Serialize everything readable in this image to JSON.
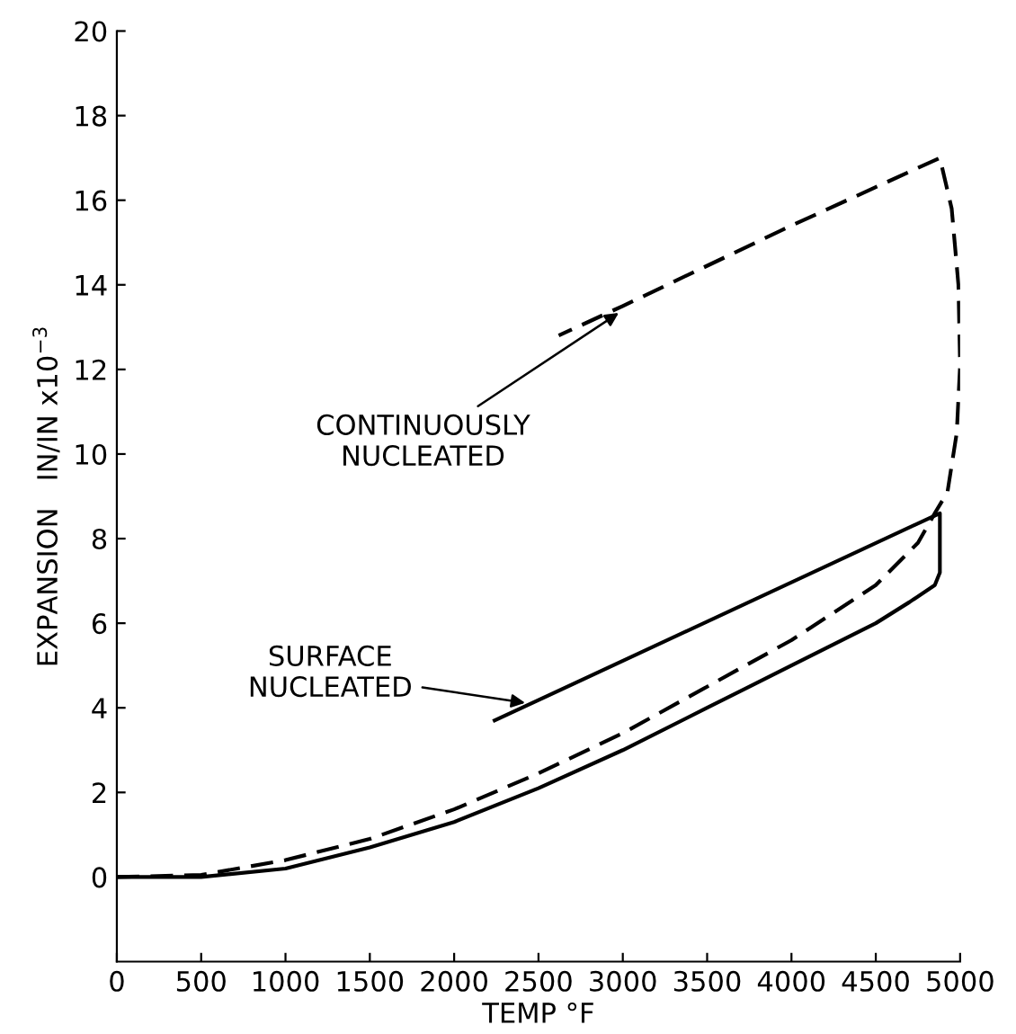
{
  "chart_data": {
    "type": "line",
    "xlabel": "TEMP °F",
    "ylabel": "EXPANSION   IN/IN x10$^{−3}$",
    "xlim": [
      0,
      5000
    ],
    "xticks": [
      0,
      500,
      1000,
      1500,
      2000,
      2500,
      3000,
      3500,
      4000,
      4500,
      5000
    ],
    "ylim": [
      -2,
      20
    ],
    "yticks": [
      0,
      2,
      4,
      6,
      8,
      10,
      12,
      14,
      16,
      18,
      20
    ],
    "grid": false,
    "legend": false,
    "marker": "none",
    "series": [
      {
        "color": "#000000",
        "line_style": "solid",
        "x": [
          0,
          500,
          1000,
          1500,
          2000,
          2500,
          3000,
          3500,
          4000,
          4250,
          4500,
          4700,
          4850,
          4880,
          4880,
          4880,
          2240
        ],
        "values": [
          0,
          0,
          0.2,
          0.7,
          1.3,
          2.1,
          3.0,
          4.0,
          5.0,
          5.5,
          6.0,
          6.5,
          6.9,
          7.2,
          8.4,
          8.6,
          3.7
        ]
      },
      {
        "color": "#000000",
        "line_style": "dashed",
        "x": [
          0,
          500,
          1000,
          1500,
          2000,
          2500,
          3000,
          3500,
          4000,
          4500,
          4750,
          4850,
          4925,
          4980,
          5000,
          4990,
          4950,
          4880,
          4000,
          3000,
          2620
        ],
        "values": [
          0,
          0.05,
          0.4,
          0.9,
          1.6,
          2.45,
          3.4,
          4.5,
          5.6,
          6.9,
          7.9,
          8.6,
          9.1,
          10.5,
          12.1,
          14.0,
          15.8,
          17.0,
          15.4,
          13.5,
          12.8
        ]
      }
    ],
    "annotations": [
      {
        "text": "CONTINUOUSLY\nNUCLEATED",
        "x": 3000,
        "y": 13.4
      },
      {
        "text": "SURFACE\nNUCLEATED",
        "x": 2450,
        "y": 4.1
      }
    ]
  }
}
